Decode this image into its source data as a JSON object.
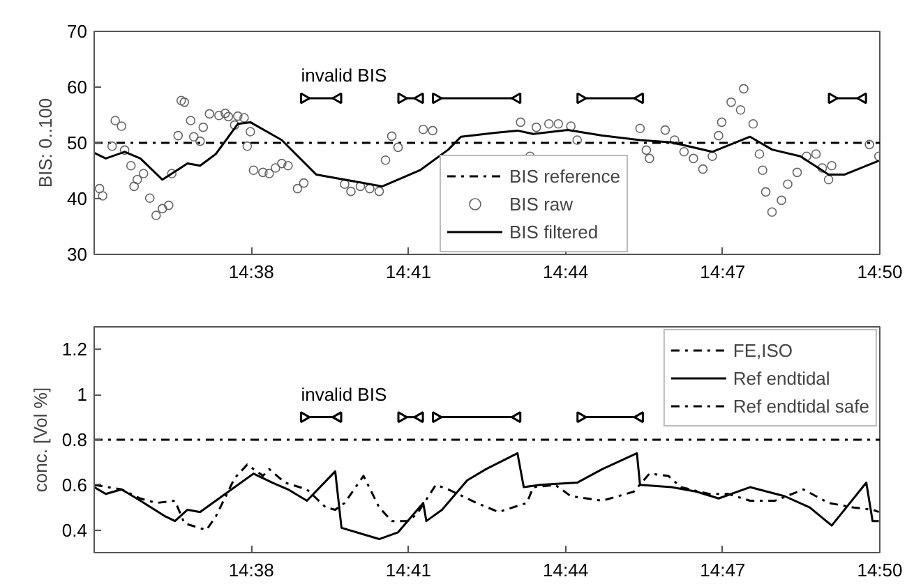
{
  "chart_data": [
    {
      "type": "line",
      "ylabel": "BIS: 0..100",
      "xlim": [
        14.5833,
        14.8333
      ],
      "ylim": [
        30,
        70
      ],
      "xticks": [
        {
          "value": 14.6333,
          "label": "14:38"
        },
        {
          "value": 14.6833,
          "label": "14:41"
        },
        {
          "value": 14.7333,
          "label": "14:44"
        },
        {
          "value": 14.7833,
          "label": "14:47"
        },
        {
          "value": 14.8333,
          "label": "14:50"
        }
      ],
      "yticks": [
        30,
        40,
        50,
        60,
        70
      ],
      "grid": false,
      "legend": "bottom",
      "annotations": [
        "invalid BIS"
      ],
      "series": [
        {
          "name": "BIS reference",
          "line_style": "dashdot",
          "color": "#000000",
          "x": [
            14.5833,
            14.8333
          ],
          "values": [
            50,
            50
          ]
        },
        {
          "name": "BIS raw",
          "type": "scatter",
          "marker": "circle",
          "color": "#666666",
          "x": [
            14.585,
            14.586,
            14.589,
            14.59,
            14.592,
            14.593,
            14.595,
            14.596,
            14.597,
            14.599,
            14.601,
            14.603,
            14.605,
            14.607,
            14.608,
            14.61,
            14.611,
            14.612,
            14.614,
            14.615,
            14.617,
            14.618,
            14.62,
            14.623,
            14.625,
            14.626,
            14.628,
            14.629,
            14.631,
            14.632,
            14.633,
            14.634,
            14.637,
            14.639,
            14.641,
            14.643,
            14.645,
            14.648,
            14.65,
            14.663,
            14.665,
            14.668,
            14.671,
            14.674,
            14.676,
            14.678,
            14.68,
            14.688,
            14.691,
            14.719,
            14.722,
            14.724,
            14.728,
            14.731,
            14.735,
            14.737,
            14.757,
            14.759,
            14.76,
            14.765,
            14.768,
            14.771,
            14.774,
            14.777,
            14.78,
            14.782,
            14.783,
            14.786,
            14.789,
            14.79,
            14.793,
            14.795,
            14.796,
            14.797,
            14.799,
            14.802,
            14.804,
            14.807,
            14.81,
            14.813,
            14.815,
            14.817,
            14.818,
            14.83,
            14.833
          ],
          "values": [
            41.8,
            40.5,
            49.4,
            54,
            53,
            48.7,
            45.9,
            42.2,
            43.4,
            44.5,
            40.1,
            37,
            38.2,
            38.8,
            44.5,
            51.3,
            57.6,
            57.3,
            54,
            51.1,
            50.3,
            52.8,
            55.2,
            54.9,
            55.3,
            54.7,
            53.2,
            54.8,
            54.5,
            49.4,
            52,
            45.1,
            44.7,
            44.5,
            45.5,
            46.3,
            45.9,
            41.8,
            42.8,
            42.6,
            41.3,
            42.2,
            41.8,
            41.3,
            46.9,
            51.2,
            49.2,
            52.4,
            52.2,
            53.7,
            47.6,
            52.8,
            53.4,
            53.4,
            53,
            50.5,
            52.6,
            48.7,
            47.2,
            52.3,
            50.5,
            48.4,
            47.2,
            45.3,
            47.6,
            51.3,
            53.7,
            57.3,
            55.9,
            59.7,
            53.4,
            48,
            45.1,
            41.2,
            37.6,
            39.7,
            42.6,
            44.7,
            47.6,
            48,
            45.5,
            43.4,
            45.9,
            49.7,
            47.6
          ]
        },
        {
          "name": "BIS filtered",
          "line_style": "solid",
          "color": "#000000",
          "x": [
            14.5833,
            14.587,
            14.593,
            14.598,
            14.605,
            14.613,
            14.617,
            14.622,
            14.629,
            14.633,
            14.643,
            14.654,
            14.675,
            14.687,
            14.696,
            14.7,
            14.711,
            14.718,
            14.723,
            14.734,
            14.745,
            14.757,
            14.767,
            14.78,
            14.792,
            14.799,
            14.808,
            14.817,
            14.822,
            14.833
          ],
          "values": [
            48.2,
            47.2,
            48.4,
            47.2,
            43.4,
            46.3,
            45.9,
            48,
            53.4,
            53.7,
            50.5,
            44.3,
            42.2,
            45.1,
            48.8,
            51.1,
            51.8,
            52.2,
            51.6,
            52.3,
            51.3,
            50.5,
            50.1,
            48.4,
            51.1,
            48.8,
            47.6,
            44.3,
            44.3,
            46.8
          ]
        },
        {
          "line_style": "solid",
          "marker": "triangle",
          "color": "#000000",
          "x": [
            14.65,
            14.661
          ],
          "values": [
            58,
            58
          ]
        },
        {
          "line_style": "solid",
          "marker": "triangle",
          "color": "#000000",
          "x": [
            14.681,
            14.687
          ],
          "values": [
            58,
            58
          ]
        },
        {
          "line_style": "solid",
          "marker": "triangle",
          "color": "#000000",
          "x": [
            14.692,
            14.718
          ],
          "values": [
            58,
            58
          ]
        },
        {
          "line_style": "solid",
          "marker": "triangle",
          "color": "#000000",
          "x": [
            14.738,
            14.757
          ],
          "values": [
            58,
            58
          ]
        },
        {
          "line_style": "solid",
          "marker": "triangle",
          "color": "#000000",
          "x": [
            14.818,
            14.828
          ],
          "values": [
            58,
            58
          ]
        }
      ]
    },
    {
      "type": "line",
      "ylabel": "conc. [Vol %]",
      "xlim": [
        14.5833,
        14.8333
      ],
      "ylim": [
        0.3,
        1.3
      ],
      "xticks": [
        {
          "value": 14.6333,
          "label": "14:38"
        },
        {
          "value": 14.6833,
          "label": "14:41"
        },
        {
          "value": 14.7333,
          "label": "14:44"
        },
        {
          "value": 14.7833,
          "label": "14:47"
        },
        {
          "value": 14.8333,
          "label": "14:50"
        }
      ],
      "yticks": [
        0.4,
        0.6,
        0.8,
        1,
        1.2
      ],
      "grid": false,
      "legend": "top right",
      "annotations": [
        "invalid BIS"
      ],
      "series": [
        {
          "name": "FE,ISO",
          "line_style": "dashdot",
          "color": "#000000",
          "x": [
            14.5833,
            14.592,
            14.598,
            14.603,
            14.609,
            14.612,
            14.619,
            14.622,
            14.628,
            14.632,
            14.637,
            14.639,
            14.644,
            14.651,
            14.657,
            14.66,
            14.663,
            14.669,
            14.674,
            14.678,
            14.683,
            14.686,
            14.692,
            14.696,
            14.705,
            14.712,
            14.721,
            14.723,
            14.73,
            14.735,
            14.745,
            14.755,
            14.76,
            14.766,
            14.77,
            14.779,
            14.785,
            14.792,
            14.8,
            14.809,
            14.817,
            14.825,
            14.831,
            14.833
          ],
          "values": [
            0.6,
            0.58,
            0.54,
            0.52,
            0.53,
            0.43,
            0.4,
            0.46,
            0.63,
            0.69,
            0.64,
            0.67,
            0.61,
            0.58,
            0.5,
            0.49,
            0.52,
            0.64,
            0.5,
            0.44,
            0.44,
            0.47,
            0.6,
            0.58,
            0.52,
            0.48,
            0.52,
            0.59,
            0.6,
            0.55,
            0.53,
            0.57,
            0.65,
            0.64,
            0.59,
            0.56,
            0.56,
            0.53,
            0.53,
            0.58,
            0.52,
            0.5,
            0.49,
            0.48
          ]
        },
        {
          "name": "Ref endtidal",
          "line_style": "solid",
          "color": "#000000",
          "x": [
            14.5833,
            14.587,
            14.592,
            14.598,
            14.606,
            14.609,
            14.613,
            14.617,
            14.625,
            14.634,
            14.64,
            14.645,
            14.651,
            14.66,
            14.662,
            14.674,
            14.68,
            14.688,
            14.689,
            14.694,
            14.702,
            14.708,
            14.718,
            14.72,
            14.725,
            14.737,
            14.745,
            14.756,
            14.757,
            14.767,
            14.775,
            14.782,
            14.792,
            14.803,
            14.811,
            14.818,
            14.829,
            14.831,
            14.833
          ],
          "values": [
            0.59,
            0.56,
            0.58,
            0.53,
            0.46,
            0.44,
            0.49,
            0.48,
            0.56,
            0.65,
            0.61,
            0.58,
            0.53,
            0.66,
            0.41,
            0.36,
            0.39,
            0.52,
            0.44,
            0.49,
            0.62,
            0.67,
            0.74,
            0.59,
            0.6,
            0.61,
            0.67,
            0.74,
            0.6,
            0.59,
            0.57,
            0.54,
            0.59,
            0.55,
            0.5,
            0.42,
            0.61,
            0.44,
            0.44
          ]
        },
        {
          "name": "Ref endtidal safe",
          "line_style": "dashdot",
          "color": "#000000",
          "x": [
            14.5833,
            14.8333
          ],
          "values": [
            0.8,
            0.8
          ]
        },
        {
          "line_style": "solid",
          "marker": "triangle",
          "color": "#000000",
          "x": [
            14.65,
            14.661
          ],
          "values": [
            0.9,
            0.9
          ]
        },
        {
          "line_style": "solid",
          "marker": "triangle",
          "color": "#000000",
          "x": [
            14.681,
            14.687
          ],
          "values": [
            0.9,
            0.9
          ]
        },
        {
          "line_style": "solid",
          "marker": "triangle",
          "color": "#000000",
          "x": [
            14.692,
            14.718
          ],
          "values": [
            0.9,
            0.9
          ]
        },
        {
          "line_style": "solid",
          "marker": "triangle",
          "color": "#000000",
          "x": [
            14.738,
            14.757
          ],
          "values": [
            0.9,
            0.9
          ]
        }
      ]
    }
  ]
}
